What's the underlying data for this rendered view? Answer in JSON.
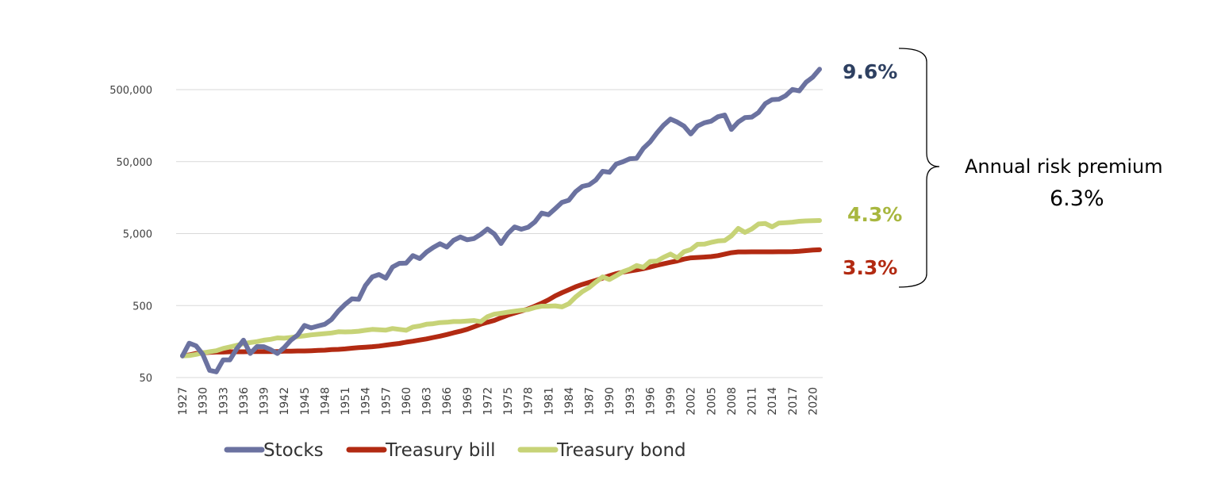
{
  "chart_data": {
    "type": "line",
    "yscale": "log",
    "ylim": [
      50,
      700000
    ],
    "yticks": [
      50,
      500,
      5000,
      50000,
      500000
    ],
    "ytick_labels": [
      "50",
      "500",
      "5,000",
      "50,000",
      "500,000"
    ],
    "xtick_labels": [
      "1927",
      "1930",
      "1933",
      "1936",
      "1939",
      "1942",
      "1945",
      "1948",
      "1951",
      "1954",
      "1957",
      "1960",
      "1963",
      "1966",
      "1969",
      "1972",
      "1975",
      "1978",
      "1981",
      "1984",
      "1987",
      "1990",
      "1993",
      "1996",
      "1999",
      "2002",
      "2005",
      "2008",
      "2011",
      "2014",
      "2017",
      "2020"
    ],
    "x_start": 1927,
    "x_end": 2021,
    "series": [
      {
        "name": "Stocks",
        "color": "#6b72a0",
        "end_label": "9.6%",
        "end_label_color": "#2e4061",
        "points": [
          [
            1927,
            100
          ],
          [
            1928,
            150
          ],
          [
            1929,
            138
          ],
          [
            1930,
            105
          ],
          [
            1931,
            63
          ],
          [
            1932,
            60
          ],
          [
            1933,
            88
          ],
          [
            1934,
            88
          ],
          [
            1935,
            125
          ],
          [
            1936,
            165
          ],
          [
            1937,
            108
          ],
          [
            1938,
            135
          ],
          [
            1939,
            134
          ],
          [
            1940,
            122
          ],
          [
            1941,
            108
          ],
          [
            1942,
            130
          ],
          [
            1943,
            165
          ],
          [
            1944,
            195
          ],
          [
            1945,
            265
          ],
          [
            1946,
            245
          ],
          [
            1947,
            260
          ],
          [
            1948,
            275
          ],
          [
            1949,
            320
          ],
          [
            1950,
            420
          ],
          [
            1951,
            520
          ],
          [
            1952,
            620
          ],
          [
            1953,
            610
          ],
          [
            1954,
            950
          ],
          [
            1955,
            1250
          ],
          [
            1956,
            1350
          ],
          [
            1957,
            1200
          ],
          [
            1958,
            1720
          ],
          [
            1959,
            1930
          ],
          [
            1960,
            1940
          ],
          [
            1961,
            2470
          ],
          [
            1962,
            2250
          ],
          [
            1963,
            2760
          ],
          [
            1964,
            3210
          ],
          [
            1965,
            3610
          ],
          [
            1966,
            3250
          ],
          [
            1967,
            4030
          ],
          [
            1968,
            4480
          ],
          [
            1969,
            4100
          ],
          [
            1970,
            4260
          ],
          [
            1971,
            4870
          ],
          [
            1972,
            5800
          ],
          [
            1973,
            4950
          ],
          [
            1974,
            3640
          ],
          [
            1975,
            4990
          ],
          [
            1976,
            6190
          ],
          [
            1977,
            5750
          ],
          [
            1978,
            6130
          ],
          [
            1979,
            7260
          ],
          [
            1980,
            9610
          ],
          [
            1981,
            9140
          ],
          [
            1982,
            11100
          ],
          [
            1983,
            13600
          ],
          [
            1984,
            14500
          ],
          [
            1985,
            19100
          ],
          [
            1986,
            22600
          ],
          [
            1987,
            23800
          ],
          [
            1988,
            27800
          ],
          [
            1989,
            36600
          ],
          [
            1990,
            35500
          ],
          [
            1991,
            46300
          ],
          [
            1992,
            49800
          ],
          [
            1993,
            54800
          ],
          [
            1994,
            55500
          ],
          [
            1995,
            76400
          ],
          [
            1996,
            94000
          ],
          [
            1997,
            125000
          ],
          [
            1998,
            161000
          ],
          [
            1999,
            195000
          ],
          [
            2000,
            177000
          ],
          [
            2001,
            156000
          ],
          [
            2002,
            121000
          ],
          [
            2003,
            156000
          ],
          [
            2004,
            173000
          ],
          [
            2005,
            182000
          ],
          [
            2006,
            210000
          ],
          [
            2007,
            222000
          ],
          [
            2008,
            140000
          ],
          [
            2009,
            177000
          ],
          [
            2010,
            204000
          ],
          [
            2011,
            208000
          ],
          [
            2012,
            241000
          ],
          [
            2013,
            320000
          ],
          [
            2014,
            363000
          ],
          [
            2015,
            368000
          ],
          [
            2016,
            412000
          ],
          [
            2017,
            502000
          ],
          [
            2018,
            480000
          ],
          [
            2019,
            631000
          ],
          [
            2020,
            747000
          ],
          [
            2021,
            960000
          ]
        ]
      },
      {
        "name": "Treasury bill",
        "color": "#b22a12",
        "end_label": "3.3%",
        "end_label_color": "#b22a12",
        "points": [
          [
            1927,
            100
          ],
          [
            1928,
            103
          ],
          [
            1929,
            108
          ],
          [
            1930,
            110
          ],
          [
            1931,
            112
          ],
          [
            1932,
            113
          ],
          [
            1933,
            113
          ],
          [
            1934,
            114
          ],
          [
            1935,
            114
          ],
          [
            1936,
            114
          ],
          [
            1937,
            115
          ],
          [
            1938,
            115
          ],
          [
            1939,
            115
          ],
          [
            1940,
            115
          ],
          [
            1941,
            115
          ],
          [
            1942,
            116
          ],
          [
            1943,
            116
          ],
          [
            1944,
            117
          ],
          [
            1945,
            117
          ],
          [
            1946,
            118
          ],
          [
            1947,
            119
          ],
          [
            1948,
            120
          ],
          [
            1949,
            122
          ],
          [
            1950,
            123
          ],
          [
            1951,
            125
          ],
          [
            1952,
            128
          ],
          [
            1953,
            130
          ],
          [
            1954,
            132
          ],
          [
            1955,
            134
          ],
          [
            1956,
            137
          ],
          [
            1957,
            141
          ],
          [
            1958,
            145
          ],
          [
            1959,
            149
          ],
          [
            1960,
            155
          ],
          [
            1961,
            160
          ],
          [
            1962,
            166
          ],
          [
            1963,
            172
          ],
          [
            1964,
            180
          ],
          [
            1965,
            188
          ],
          [
            1966,
            198
          ],
          [
            1967,
            209
          ],
          [
            1968,
            220
          ],
          [
            1969,
            234
          ],
          [
            1970,
            253
          ],
          [
            1971,
            275
          ],
          [
            1972,
            293
          ],
          [
            1973,
            311
          ],
          [
            1974,
            339
          ],
          [
            1975,
            368
          ],
          [
            1976,
            394
          ],
          [
            1977,
            420
          ],
          [
            1978,
            449
          ],
          [
            1979,
            490
          ],
          [
            1980,
            540
          ],
          [
            1981,
            600
          ],
          [
            1982,
            681
          ],
          [
            1983,
            755
          ],
          [
            1984,
            827
          ],
          [
            1985,
            910
          ],
          [
            1986,
            984
          ],
          [
            1987,
            1050
          ],
          [
            1988,
            1120
          ],
          [
            1989,
            1205
          ],
          [
            1990,
            1300
          ],
          [
            1991,
            1390
          ],
          [
            1992,
            1460
          ],
          [
            1993,
            1510
          ],
          [
            1994,
            1565
          ],
          [
            1995,
            1630
          ],
          [
            1996,
            1715
          ],
          [
            1997,
            1810
          ],
          [
            1998,
            1900
          ],
          [
            1999,
            1995
          ],
          [
            2000,
            2085
          ],
          [
            2001,
            2210
          ],
          [
            2002,
            2300
          ],
          [
            2003,
            2330
          ],
          [
            2004,
            2360
          ],
          [
            2005,
            2395
          ],
          [
            2006,
            2470
          ],
          [
            2007,
            2590
          ],
          [
            2008,
            2710
          ],
          [
            2009,
            2780
          ],
          [
            2010,
            2785
          ],
          [
            2011,
            2787
          ],
          [
            2012,
            2790
          ],
          [
            2013,
            2791
          ],
          [
            2014,
            2793
          ],
          [
            2015,
            2795
          ],
          [
            2016,
            2800
          ],
          [
            2017,
            2810
          ],
          [
            2018,
            2850
          ],
          [
            2019,
            2900
          ],
          [
            2020,
            2950
          ],
          [
            2021,
            2980
          ]
        ]
      },
      {
        "name": "Treasury bond",
        "color": "#c7d377",
        "end_label": "4.3%",
        "end_label_color": "#a8b73f",
        "points": [
          [
            1927,
            100
          ],
          [
            1928,
            101
          ],
          [
            1929,
            105
          ],
          [
            1930,
            110
          ],
          [
            1931,
            114
          ],
          [
            1932,
            118
          ],
          [
            1933,
            127
          ],
          [
            1934,
            133
          ],
          [
            1935,
            140
          ],
          [
            1936,
            148
          ],
          [
            1937,
            153
          ],
          [
            1938,
            158
          ],
          [
            1939,
            165
          ],
          [
            1940,
            170
          ],
          [
            1941,
            178
          ],
          [
            1942,
            176
          ],
          [
            1943,
            180
          ],
          [
            1944,
            185
          ],
          [
            1945,
            190
          ],
          [
            1946,
            196
          ],
          [
            1947,
            200
          ],
          [
            1948,
            204
          ],
          [
            1949,
            208
          ],
          [
            1950,
            216
          ],
          [
            1951,
            215
          ],
          [
            1952,
            216
          ],
          [
            1953,
            220
          ],
          [
            1954,
            227
          ],
          [
            1955,
            233
          ],
          [
            1956,
            231
          ],
          [
            1957,
            228
          ],
          [
            1958,
            240
          ],
          [
            1959,
            233
          ],
          [
            1960,
            227
          ],
          [
            1961,
            252
          ],
          [
            1962,
            260
          ],
          [
            1963,
            275
          ],
          [
            1964,
            280
          ],
          [
            1965,
            290
          ],
          [
            1966,
            293
          ],
          [
            1967,
            300
          ],
          [
            1968,
            300
          ],
          [
            1969,
            305
          ],
          [
            1970,
            310
          ],
          [
            1971,
            298
          ],
          [
            1972,
            350
          ],
          [
            1973,
            380
          ],
          [
            1974,
            390
          ],
          [
            1975,
            405
          ],
          [
            1976,
            418
          ],
          [
            1977,
            430
          ],
          [
            1978,
            440
          ],
          [
            1979,
            470
          ],
          [
            1980,
            490
          ],
          [
            1981,
            490
          ],
          [
            1982,
            495
          ],
          [
            1983,
            480
          ],
          [
            1984,
            530
          ],
          [
            1985,
            657
          ],
          [
            1986,
            780
          ],
          [
            1987,
            888
          ],
          [
            1988,
            1060
          ],
          [
            1989,
            1250
          ],
          [
            1990,
            1150
          ],
          [
            1991,
            1300
          ],
          [
            1992,
            1480
          ],
          [
            1993,
            1600
          ],
          [
            1994,
            1800
          ],
          [
            1995,
            1700
          ],
          [
            1996,
            2050
          ],
          [
            1997,
            2080
          ],
          [
            1998,
            2350
          ],
          [
            1999,
            2600
          ],
          [
            2000,
            2300
          ],
          [
            2001,
            2800
          ],
          [
            2002,
            3000
          ],
          [
            2003,
            3550
          ],
          [
            2004,
            3570
          ],
          [
            2005,
            3770
          ],
          [
            2006,
            3950
          ],
          [
            2007,
            4000
          ],
          [
            2008,
            4650
          ],
          [
            2009,
            5900
          ],
          [
            2010,
            5200
          ],
          [
            2011,
            5800
          ],
          [
            2012,
            6800
          ],
          [
            2013,
            6900
          ],
          [
            2014,
            6200
          ],
          [
            2015,
            7000
          ],
          [
            2016,
            7100
          ],
          [
            2017,
            7200
          ],
          [
            2018,
            7400
          ],
          [
            2019,
            7500
          ],
          [
            2020,
            7550
          ],
          [
            2021,
            7600
          ]
        ]
      }
    ],
    "legend": [
      "Stocks",
      "Treasury bill",
      "Treasury bond"
    ],
    "annotation": {
      "label": "Annual risk premium",
      "value": "6.3%"
    }
  }
}
